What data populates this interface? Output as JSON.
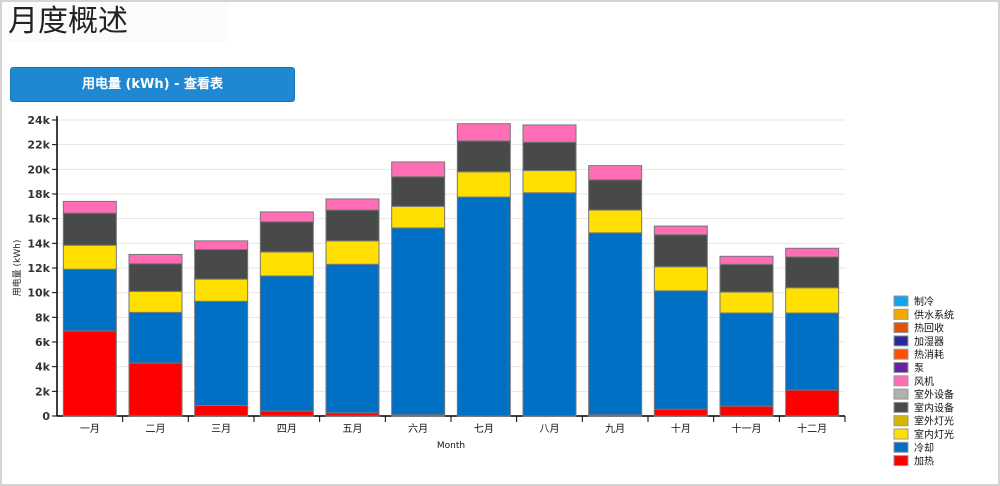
{
  "page_title": "月度概述",
  "toggle_button": "用电量 (kWh) - 查看表",
  "chart_data": {
    "type": "bar",
    "stacked": true,
    "title": "",
    "xlabel": "Month",
    "ylabel": "用电量 (kWh)",
    "ylim": [
      0,
      24000
    ],
    "yticks": [
      "0",
      "2k",
      "4k",
      "6k",
      "8k",
      "10k",
      "12k",
      "14k",
      "16k",
      "18k",
      "20k",
      "22k",
      "24k"
    ],
    "grid": true,
    "legend_position": "right",
    "categories": [
      "一月",
      "二月",
      "三月",
      "四月",
      "五月",
      "六月",
      "七月",
      "八月",
      "九月",
      "十月",
      "十一月",
      "十二月"
    ],
    "series": [
      {
        "name": "制冷",
        "color": "#0ea5e9",
        "values": [
          0,
          0,
          0,
          0,
          0,
          0,
          0,
          0,
          0,
          0,
          0,
          0
        ]
      },
      {
        "name": "供水系统",
        "color": "#f5a800",
        "values": [
          0,
          0,
          0,
          0,
          0,
          0,
          0,
          0,
          0,
          0,
          0,
          0
        ]
      },
      {
        "name": "热回收",
        "color": "#e0530a",
        "values": [
          0,
          0,
          0,
          0,
          0,
          0,
          0,
          0,
          0,
          0,
          0,
          0
        ]
      },
      {
        "name": "加湿器",
        "color": "#2a2a96",
        "values": [
          0,
          0,
          0,
          0,
          0,
          0,
          0,
          0,
          0,
          0,
          0,
          0
        ]
      },
      {
        "name": "热消耗",
        "color": "#ff4f00",
        "values": [
          0,
          0,
          0,
          0,
          0,
          0,
          0,
          0,
          0,
          0,
          0,
          0
        ]
      },
      {
        "name": "泵",
        "color": "#6a1fa8",
        "values": [
          0,
          0,
          0,
          0,
          0,
          0,
          0,
          0,
          0,
          0,
          0,
          0
        ]
      },
      {
        "name": "风机",
        "color": "#ff6eb4",
        "values": [
          950,
          750,
          700,
          800,
          900,
          1200,
          1400,
          1400,
          1150,
          700,
          650,
          700
        ]
      },
      {
        "name": "室外设备",
        "color": "#b0b0b0",
        "values": [
          0,
          0,
          0,
          0,
          0,
          0,
          0,
          0,
          0,
          0,
          0,
          0
        ]
      },
      {
        "name": "室内设备",
        "color": "#474a48",
        "values": [
          2600,
          2250,
          2400,
          2450,
          2500,
          2400,
          2500,
          2300,
          2450,
          2600,
          2250,
          2500
        ]
      },
      {
        "name": "室外灯光",
        "color": "#d4b800",
        "values": [
          0,
          0,
          0,
          0,
          0,
          0,
          0,
          0,
          0,
          0,
          0,
          0
        ]
      },
      {
        "name": "室内灯光",
        "color": "#ffe000",
        "values": [
          1950,
          1700,
          1800,
          1950,
          1900,
          1750,
          2050,
          1800,
          1850,
          1950,
          1700,
          2050
        ]
      },
      {
        "name": "冷却",
        "color": "#0070c4",
        "values": [
          5000,
          4100,
          8450,
          10950,
          12050,
          15150,
          17750,
          18100,
          14750,
          9600,
          7550,
          6250
        ]
      },
      {
        "name": "加热",
        "color": "#ff0000",
        "values": [
          6900,
          4300,
          850,
          400,
          250,
          100,
          0,
          0,
          100,
          550,
          800,
          2100
        ]
      }
    ]
  }
}
